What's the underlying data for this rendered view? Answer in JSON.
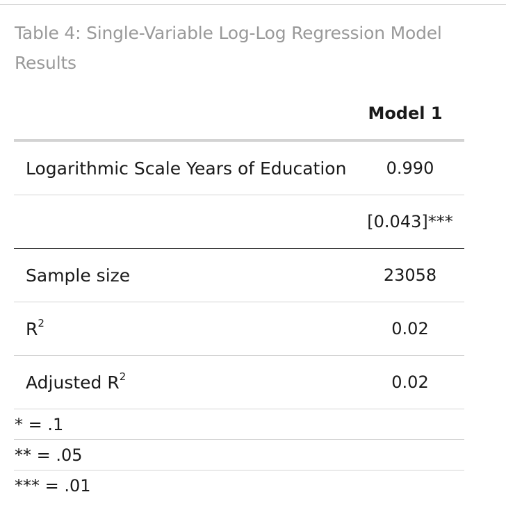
{
  "caption": "Table 4: Single-Variable Log-Log Regression Model Results",
  "table": {
    "header": "Model 1",
    "rows": [
      {
        "label": "Logarithmic Scale Years of Education",
        "value": "0.990"
      },
      {
        "label": "",
        "value": "[0.043]***"
      },
      {
        "label": "Sample size",
        "value": "23058"
      },
      {
        "label": "R",
        "sup": "2",
        "value": "0.02"
      },
      {
        "label": "Adjusted R",
        "sup": "2",
        "value": "0.02"
      }
    ],
    "notes": [
      "* = .1",
      "** = .05",
      "*** = .01"
    ]
  }
}
